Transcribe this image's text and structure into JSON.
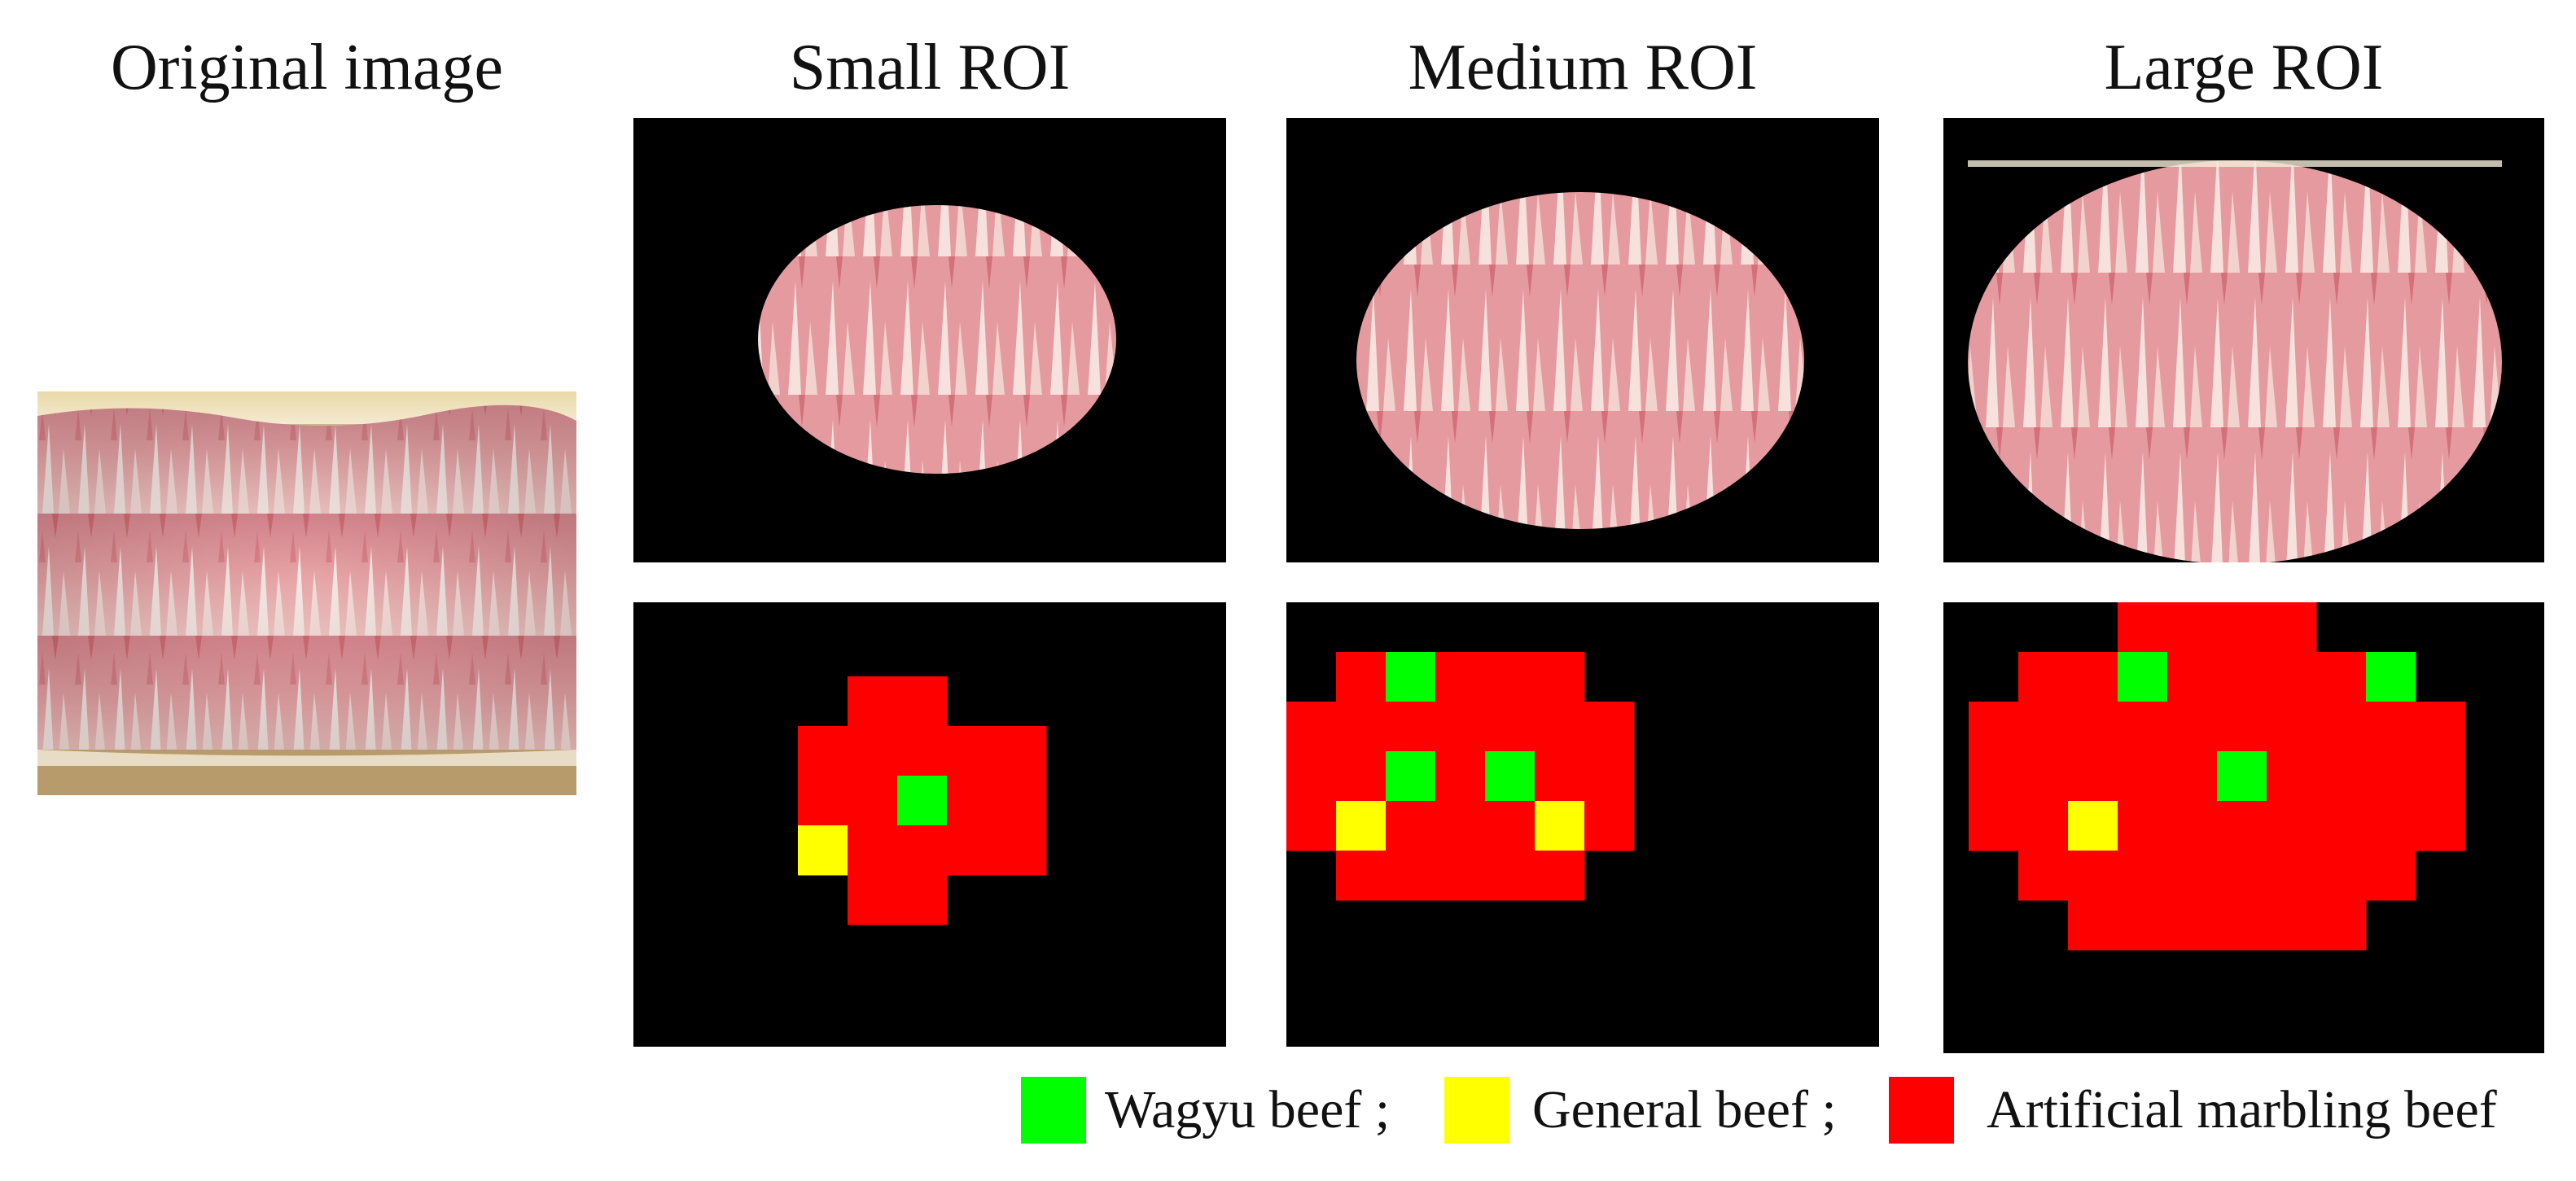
{
  "titles": {
    "original": "Original image",
    "small": "Small ROI",
    "medium": "Medium ROI",
    "large": "Large ROI"
  },
  "colors": {
    "wagyu": "#00ff00",
    "general": "#ffff00",
    "artificial": "#ff0000",
    "background": "#000000"
  },
  "legend": {
    "wagyu": "Wagyu beef ;",
    "general": "General beef ;",
    "artificial": "Artificial marbling beef"
  },
  "grids": {
    "small": [
      "..........",
      "....RR....",
      "...RRRRR..",
      "...RRGRR..",
      "...YRRRR..",
      "....RR....",
      ".........."
    ],
    "medium": [
      "..........",
      "...RGRRR..",
      "..RRRRRRR.",
      "..RRGRGRR.",
      "..RYRRRYR.",
      "...RRRRR..",
      ".........."
    ],
    "large": [
      "...........",
      "....RRRR...",
      "..RRGRRRRG.",
      ".RRRRRRRRRR",
      ".RRRRRGRRRR",
      ".RRYRRRRRRR",
      "..RRRRRRRR.",
      "...RRRRRR..",
      "..........."
    ]
  }
}
